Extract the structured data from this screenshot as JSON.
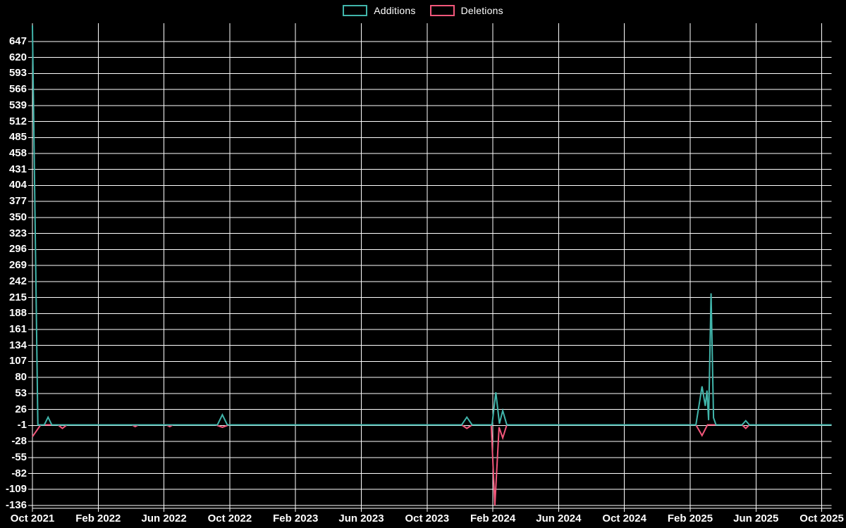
{
  "chart_data": {
    "type": "line",
    "title": "",
    "description": "Weekly additions and deletions activity chart on black background with white grid",
    "legend_position": "top-center",
    "grid": true,
    "colors": {
      "background": "#000000",
      "grid": "#ffffff",
      "text": "#ffffff"
    },
    "x_axis": {
      "tick_labels": [
        "Oct 2021",
        "Feb 2022",
        "Jun 2022",
        "Oct 2022",
        "Feb 2023",
        "Jun 2023",
        "Oct 2023",
        "Feb 2024",
        "Jun 2024",
        "Oct 2024",
        "Feb 2025",
        "Jun 2025",
        "Oct 2025"
      ],
      "tick_interval_months": 4,
      "range_months": [
        0,
        48.6
      ]
    },
    "y_axis": {
      "tick_labels": [
        "647",
        "620",
        "593",
        "566",
        "539",
        "512",
        "485",
        "458",
        "431",
        "404",
        "377",
        "350",
        "323",
        "296",
        "269",
        "242",
        "215",
        "188",
        "161",
        "134",
        "107",
        "80",
        "53",
        "26",
        "-1",
        "-28",
        "-55",
        "-82",
        "-109",
        "-136"
      ],
      "tick_values": [
        647,
        620,
        593,
        566,
        539,
        512,
        485,
        458,
        431,
        404,
        377,
        350,
        323,
        296,
        269,
        242,
        215,
        188,
        161,
        134,
        107,
        80,
        53,
        26,
        -1,
        -28,
        -55,
        -82,
        -109,
        -136
      ],
      "tick_step": 27,
      "range": [
        -136,
        674
      ]
    },
    "series": [
      {
        "name": "Additions",
        "color": "#41b5ab",
        "points_months_value": [
          [
            0,
            674
          ],
          [
            0.33,
            0
          ],
          [
            0.72,
            0
          ],
          [
            0.95,
            13
          ],
          [
            1.18,
            0
          ],
          [
            11.25,
            0
          ],
          [
            11.55,
            17
          ],
          [
            11.85,
            0
          ],
          [
            26.1,
            0
          ],
          [
            26.42,
            13
          ],
          [
            26.74,
            0
          ],
          [
            27.95,
            0
          ],
          [
            28.18,
            55
          ],
          [
            28.4,
            2
          ],
          [
            28.6,
            24
          ],
          [
            28.85,
            0
          ],
          [
            40.35,
            0
          ],
          [
            40.72,
            65
          ],
          [
            40.92,
            32
          ],
          [
            41.02,
            58
          ],
          [
            41.12,
            8
          ],
          [
            41.27,
            222
          ],
          [
            41.42,
            12
          ],
          [
            41.57,
            0
          ],
          [
            43.15,
            0
          ],
          [
            43.38,
            7
          ],
          [
            43.6,
            0
          ],
          [
            48.6,
            0
          ]
        ]
      },
      {
        "name": "Deletions",
        "color": "#f2577b",
        "points_months_value": [
          [
            0,
            -20
          ],
          [
            0.5,
            0
          ],
          [
            1.55,
            0
          ],
          [
            1.82,
            -6
          ],
          [
            2.1,
            0
          ],
          [
            6.05,
            0
          ],
          [
            6.25,
            -3
          ],
          [
            6.45,
            0
          ],
          [
            8.15,
            0
          ],
          [
            8.35,
            -3
          ],
          [
            8.55,
            0
          ],
          [
            11.15,
            0
          ],
          [
            11.55,
            -4
          ],
          [
            11.95,
            0
          ],
          [
            26.1,
            0
          ],
          [
            26.42,
            -6
          ],
          [
            26.74,
            0
          ],
          [
            27.9,
            0
          ],
          [
            28.12,
            -136
          ],
          [
            28.38,
            -4
          ],
          [
            28.6,
            -22
          ],
          [
            28.85,
            0
          ],
          [
            40.35,
            0
          ],
          [
            40.72,
            -18
          ],
          [
            41.05,
            0
          ],
          [
            43.15,
            0
          ],
          [
            43.38,
            -6
          ],
          [
            43.6,
            0
          ],
          [
            48.6,
            0
          ]
        ]
      }
    ],
    "notable_values": {
      "max_additions_week": 674,
      "min_deletions_week": -136,
      "secondary_additions_spike": 222
    }
  }
}
